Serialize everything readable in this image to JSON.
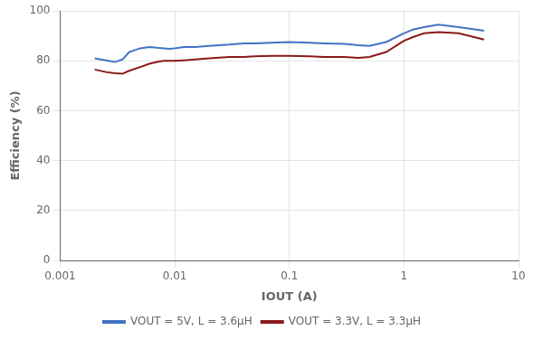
{
  "chart_data": {
    "type": "line",
    "xlabel": "IOUT (A)",
    "ylabel": "Efficiency (%)",
    "log": "x",
    "grid": true,
    "legend": "lower center",
    "xlim": [
      0.001,
      10
    ],
    "ylim": [
      0,
      100
    ],
    "xticks": [
      0.001,
      0.01,
      0.1,
      1,
      10
    ],
    "yticks": [
      0,
      20,
      40,
      60,
      80,
      100
    ],
    "x": [
      0.002,
      0.0025,
      0.003,
      0.0035,
      0.004,
      0.005,
      0.006,
      0.007,
      0.008,
      0.009,
      0.01,
      0.012,
      0.015,
      0.02,
      0.03,
      0.04,
      0.05,
      0.07,
      0.1,
      0.15,
      0.2,
      0.3,
      0.4,
      0.5,
      0.7,
      1.0,
      1.2,
      1.5,
      2.0,
      3.0,
      5.0
    ],
    "series": [
      {
        "name": "VOUT = 5V, L = 3.6μH",
        "color": "#4472c4",
        "values": [
          81.0,
          80.2,
          79.5,
          80.5,
          83.5,
          85.0,
          85.5,
          85.2,
          85.0,
          84.8,
          85.0,
          85.5,
          85.5,
          86.0,
          86.5,
          87.0,
          87.0,
          87.2,
          87.5,
          87.2,
          87.0,
          86.8,
          86.2,
          86.0,
          87.5,
          91.0,
          92.5,
          93.5,
          94.5,
          93.5,
          92.0
        ]
      },
      {
        "name": "VOUT = 3.3V, L = 3.3μH",
        "color": "#8b1a1a",
        "values": [
          76.5,
          75.5,
          75.0,
          74.8,
          76.0,
          77.5,
          78.8,
          79.5,
          80.0,
          80.0,
          80.0,
          80.2,
          80.5,
          81.0,
          81.5,
          81.5,
          81.8,
          82.0,
          82.0,
          81.8,
          81.5,
          81.5,
          81.2,
          81.5,
          83.5,
          88.0,
          89.5,
          91.0,
          91.5,
          91.0,
          88.5
        ]
      }
    ]
  }
}
